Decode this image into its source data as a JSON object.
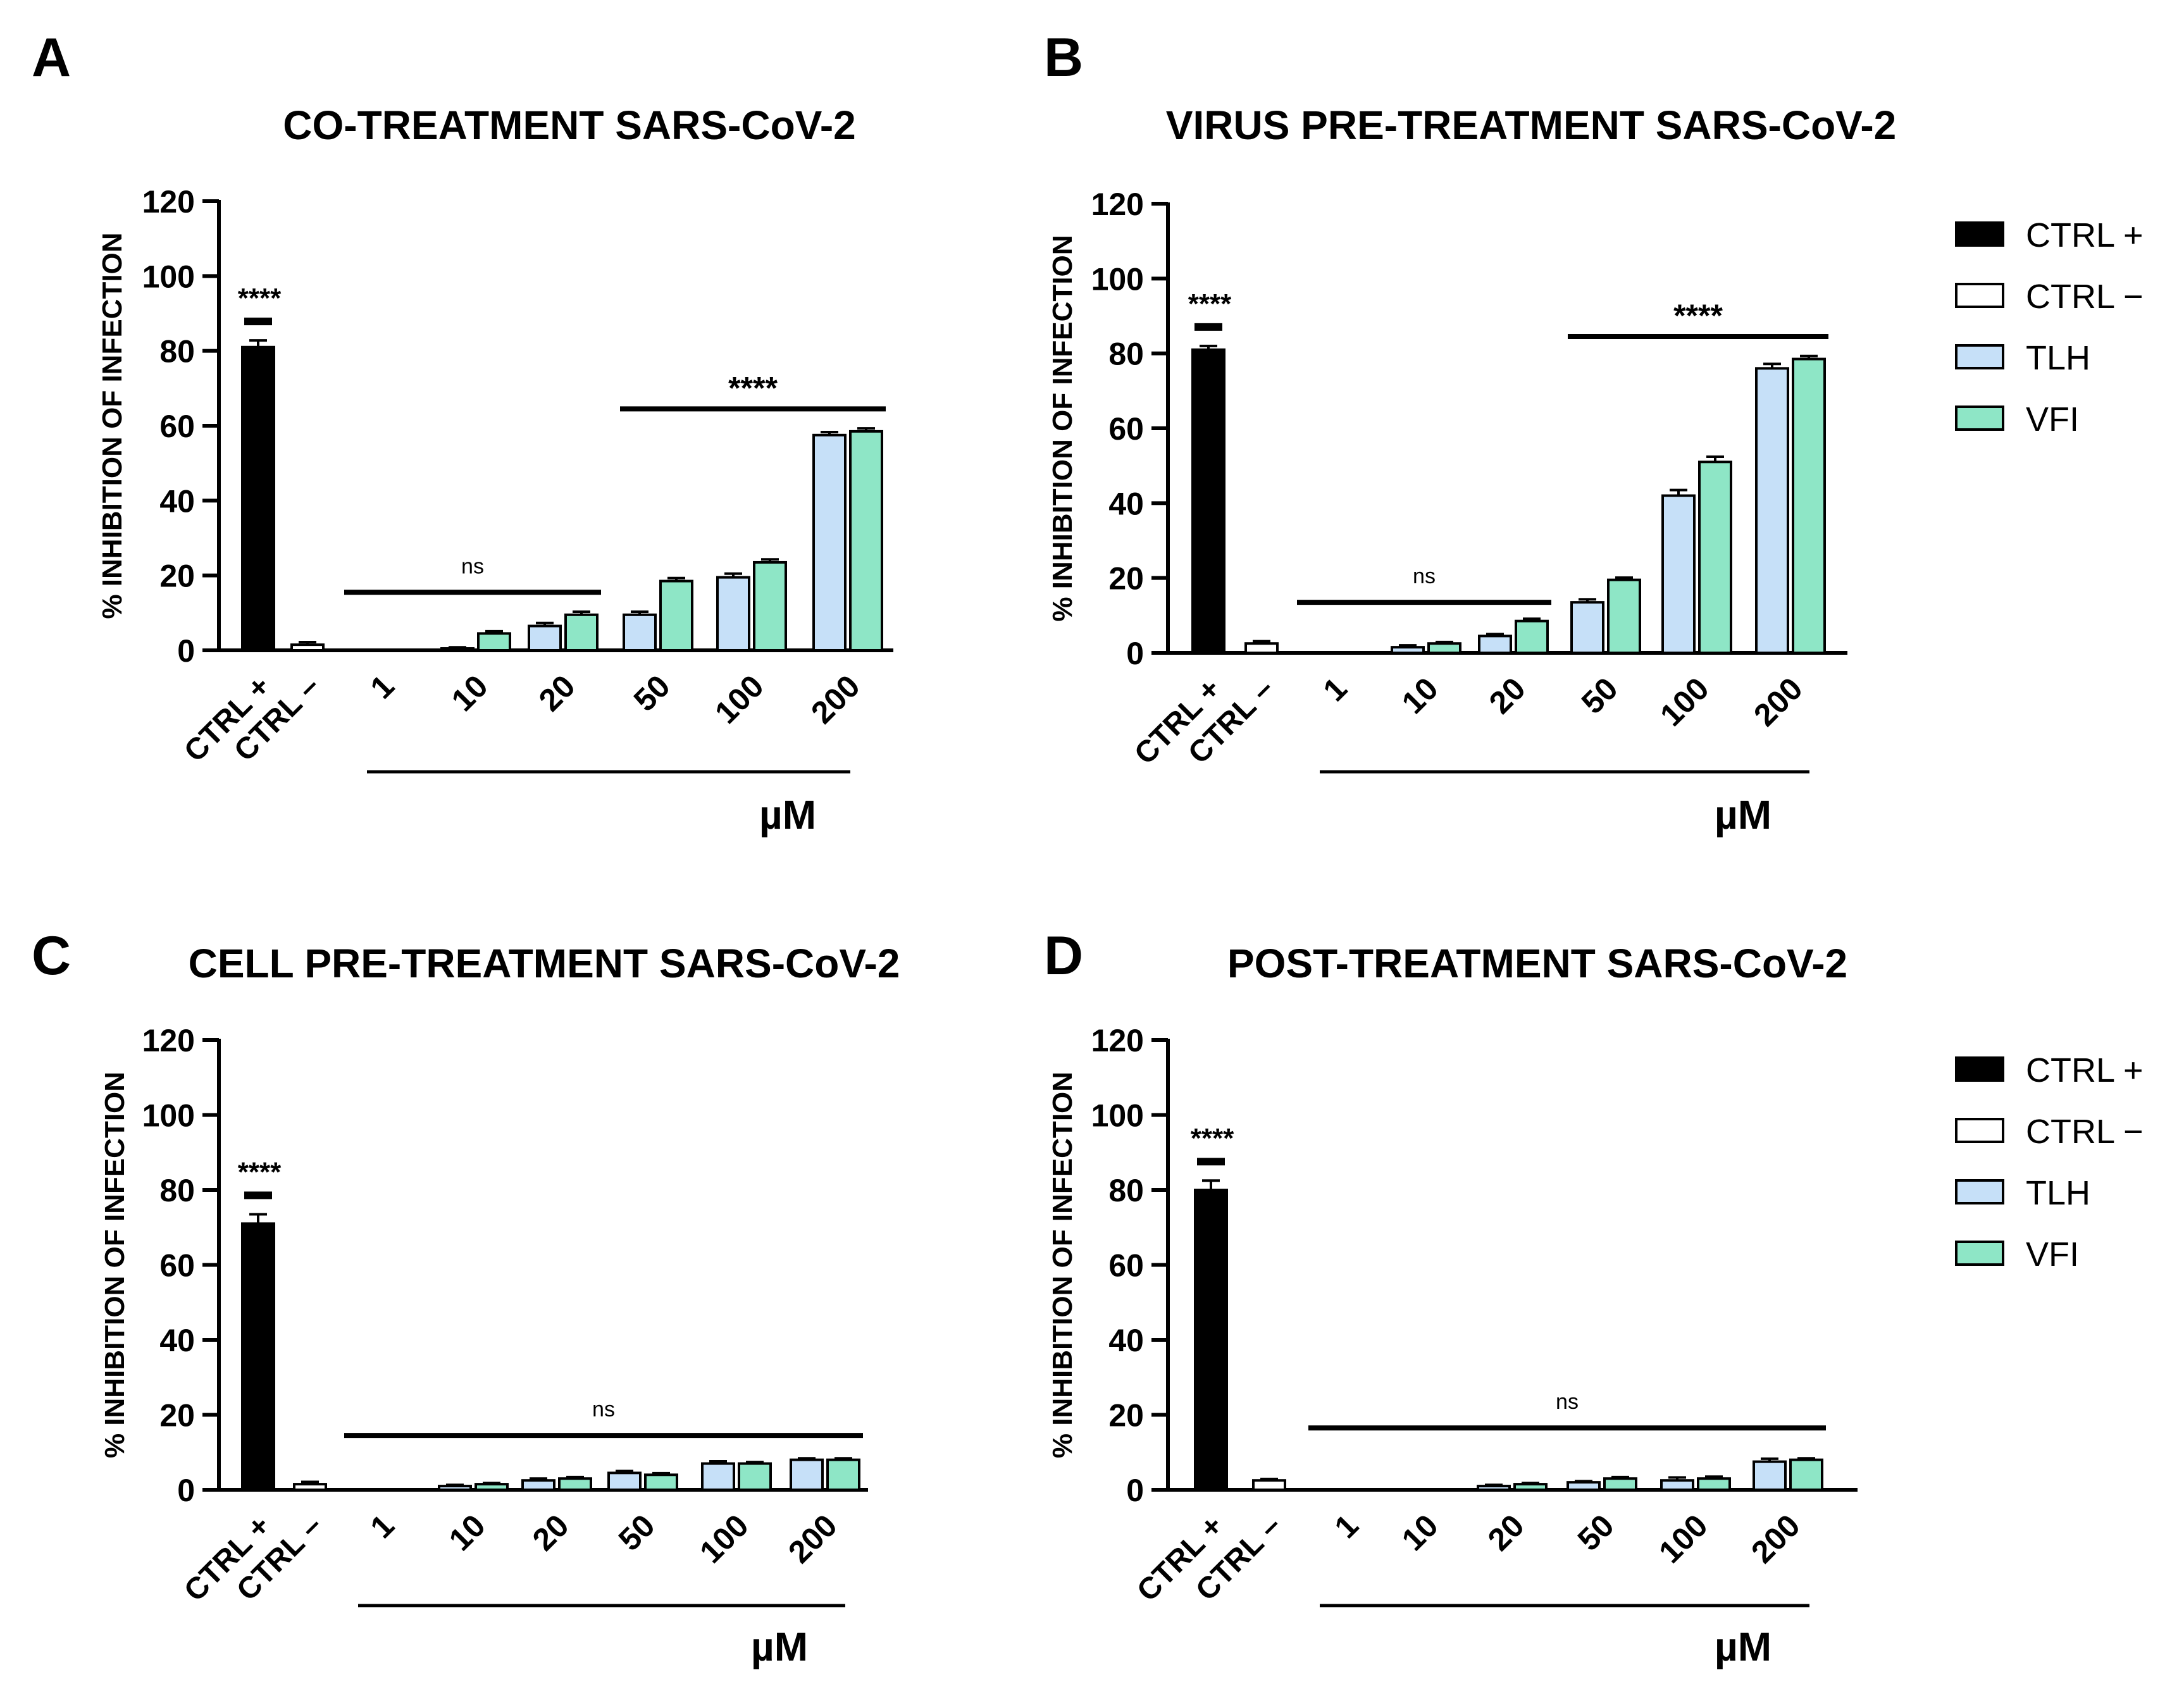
{
  "figure": {
    "legend": [
      {
        "label": "CTRL +",
        "color": "#000000"
      },
      {
        "label": "CTRL −",
        "color": "#ffffff"
      },
      {
        "label": "TLH",
        "color": "#c6e0f8"
      },
      {
        "label": "VFI",
        "color": "#8ee6c6"
      }
    ],
    "unit_label": "µM"
  },
  "chart_data": [
    {
      "panel": "A",
      "type": "bar",
      "title": "CO-TREATMENT SARS-CoV-2",
      "ylabel": "% INHIBITION OF INFECTION",
      "xlabel": "µM",
      "ylim": [
        0,
        120
      ],
      "yticks": [
        "0",
        "20",
        "40",
        "60",
        "80",
        "100",
        "120"
      ],
      "controls": [
        {
          "name": "CTRL +",
          "value": 81,
          "error": 1.8
        },
        {
          "name": "CTRL –",
          "value": 1.5,
          "error": 0.7
        }
      ],
      "categories": [
        "1",
        "10",
        "20",
        "50",
        "100",
        "200"
      ],
      "series": [
        {
          "name": "TLH",
          "values": [
            0,
            0.5,
            6.5,
            9.5,
            19.5,
            57.5
          ],
          "errors": [
            0,
            0.3,
            0.8,
            0.8,
            1.0,
            0.8
          ]
        },
        {
          "name": "VFI",
          "values": [
            0,
            4.5,
            9.5,
            18.5,
            23.5,
            58.5
          ],
          "errors": [
            0,
            0.6,
            0.8,
            0.8,
            0.8,
            0.8
          ]
        }
      ],
      "significance": [
        {
          "label": "****",
          "target": "ctrl"
        },
        {
          "label": "ns",
          "from": "1",
          "to": "20",
          "level": 15.5
        },
        {
          "label": "****",
          "from": "50",
          "to": "200",
          "level": 64.5
        }
      ]
    },
    {
      "panel": "B",
      "type": "bar",
      "title": "VIRUS PRE-TREATMENT SARS-CoV-2",
      "ylabel": "% INHIBITION OF INFECTION",
      "xlabel": "µM",
      "ylim": [
        0,
        120
      ],
      "yticks": [
        "0",
        "20",
        "40",
        "60",
        "80",
        "100",
        "120"
      ],
      "controls": [
        {
          "name": "CTRL +",
          "value": 81,
          "error": 1.0
        },
        {
          "name": "CTRL –",
          "value": 2.5,
          "error": 0.6
        }
      ],
      "categories": [
        "1",
        "10",
        "20",
        "50",
        "100",
        "200"
      ],
      "series": [
        {
          "name": "TLH",
          "values": [
            0,
            1.5,
            4.5,
            13.5,
            42,
            76
          ],
          "errors": [
            0,
            0.5,
            0.5,
            0.8,
            1.5,
            1.2
          ]
        },
        {
          "name": "VFI",
          "values": [
            0,
            2.5,
            8.5,
            19.5,
            51,
            78.5
          ],
          "errors": [
            0,
            0.4,
            0.6,
            0.6,
            1.4,
            0.8
          ]
        }
      ],
      "significance": [
        {
          "label": "****",
          "target": "ctrl"
        },
        {
          "label": "ns",
          "from": "1",
          "to": "20",
          "level": 13.5
        },
        {
          "label": "****",
          "from": "50",
          "to": "200",
          "level": 84.5
        }
      ]
    },
    {
      "panel": "C",
      "type": "bar",
      "title": "CELL PRE-TREATMENT SARS-CoV-2",
      "ylabel": "% INHIBITION OF INFECTION",
      "xlabel": "µM",
      "ylim": [
        0,
        120
      ],
      "yticks": [
        "0",
        "20",
        "40",
        "60",
        "80",
        "100",
        "120"
      ],
      "controls": [
        {
          "name": "CTRL +",
          "value": 71,
          "error": 2.5
        },
        {
          "name": "CTRL –",
          "value": 1.5,
          "error": 0.6
        }
      ],
      "categories": [
        "1",
        "10",
        "20",
        "50",
        "100",
        "200"
      ],
      "series": [
        {
          "name": "TLH",
          "values": [
            0,
            1,
            2.5,
            4.5,
            7,
            8
          ],
          "errors": [
            0,
            0.3,
            0.5,
            0.5,
            0.6,
            0.4
          ]
        },
        {
          "name": "VFI",
          "values": [
            0,
            1.5,
            3,
            4,
            7,
            8
          ],
          "errors": [
            0,
            0.3,
            0.4,
            0.4,
            0.4,
            0.4
          ]
        }
      ],
      "significance": [
        {
          "label": "****",
          "target": "ctrl"
        },
        {
          "label": "ns",
          "from": "1",
          "to": "200",
          "level": 14.5
        }
      ]
    },
    {
      "panel": "D",
      "type": "bar",
      "title": "POST-TREATMENT SARS-CoV-2",
      "ylabel": "% INHIBITION OF INFECTION",
      "xlabel": "µM",
      "ylim": [
        0,
        120
      ],
      "yticks": [
        "0",
        "20",
        "40",
        "60",
        "80",
        "100",
        "120"
      ],
      "controls": [
        {
          "name": "CTRL +",
          "value": 80,
          "error": 2.5
        },
        {
          "name": "CTRL –",
          "value": 2.5,
          "error": 0.4
        }
      ],
      "categories": [
        "1",
        "10",
        "20",
        "50",
        "100",
        "200"
      ],
      "series": [
        {
          "name": "TLH",
          "values": [
            0,
            0,
            1,
            2,
            2.5,
            7.5
          ],
          "errors": [
            0,
            0,
            0.3,
            0.3,
            0.8,
            0.8
          ]
        },
        {
          "name": "VFI",
          "values": [
            0,
            0,
            1.5,
            3,
            3,
            8
          ],
          "errors": [
            0,
            0,
            0.3,
            0.4,
            0.5,
            0.4
          ]
        }
      ],
      "significance": [
        {
          "label": "****",
          "target": "ctrl"
        },
        {
          "label": "ns",
          "from": "1",
          "to": "200",
          "level": 16.5
        }
      ]
    }
  ]
}
